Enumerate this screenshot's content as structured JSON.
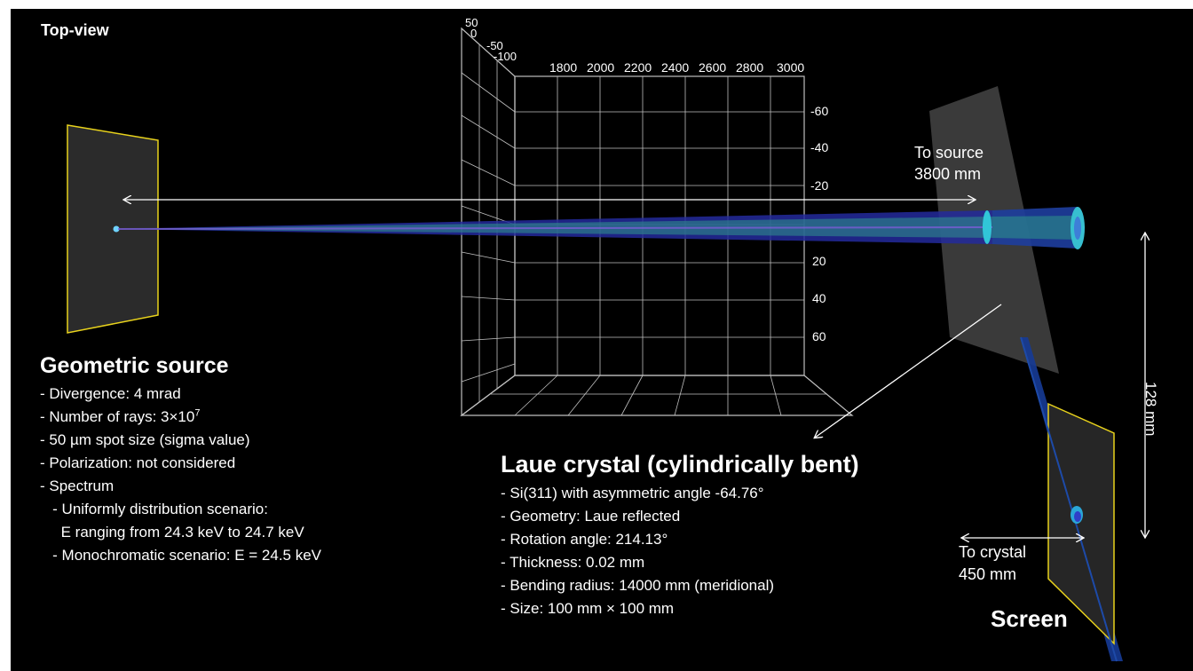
{
  "view_label": "Top-view",
  "grid": {
    "x_ticks": [
      "1800",
      "2000",
      "2200",
      "2400",
      "2600",
      "2800",
      "3000"
    ],
    "y_ticks": [
      "-60",
      "-40",
      "-20",
      "20",
      "40",
      "60"
    ],
    "z_ticks": [
      "50",
      "0",
      "-50",
      "-100"
    ]
  },
  "source": {
    "title": "Geometric source",
    "lines": [
      "- Divergence: 4 mrad",
      "- Number of rays:  3×10",
      "- 50 µm spot size (sigma value)",
      "- Polarization: not considered",
      "- Spectrum",
      "   - Uniformly distribution scenario:",
      "     E ranging from 24.3 keV to 24.7 keV",
      "   - Monochromatic scenario: E = 24.5 keV"
    ],
    "rays_exponent": "7"
  },
  "crystal": {
    "title": "Laue crystal (cylindrically bent)",
    "lines": [
      "- Si(311) with asymmetric angle -64.76°",
      "- Geometry: Laue reflected",
      "- Rotation angle: 214.13°",
      "- Thickness: 0.02 mm",
      "- Bending radius: 14000 mm (meridional)",
      "- Size: 100 mm × 100 mm"
    ]
  },
  "to_source": [
    "To source",
    "3800 mm"
  ],
  "to_crystal": [
    "To crystal",
    "450 mm"
  ],
  "vertical_distance": "128 mm",
  "screen_label": "Screen",
  "colors": {
    "background": "#000000",
    "frame": "#e8d21c",
    "grid": "#bfbfbf",
    "beam_core": "#3a2fa0"
  }
}
